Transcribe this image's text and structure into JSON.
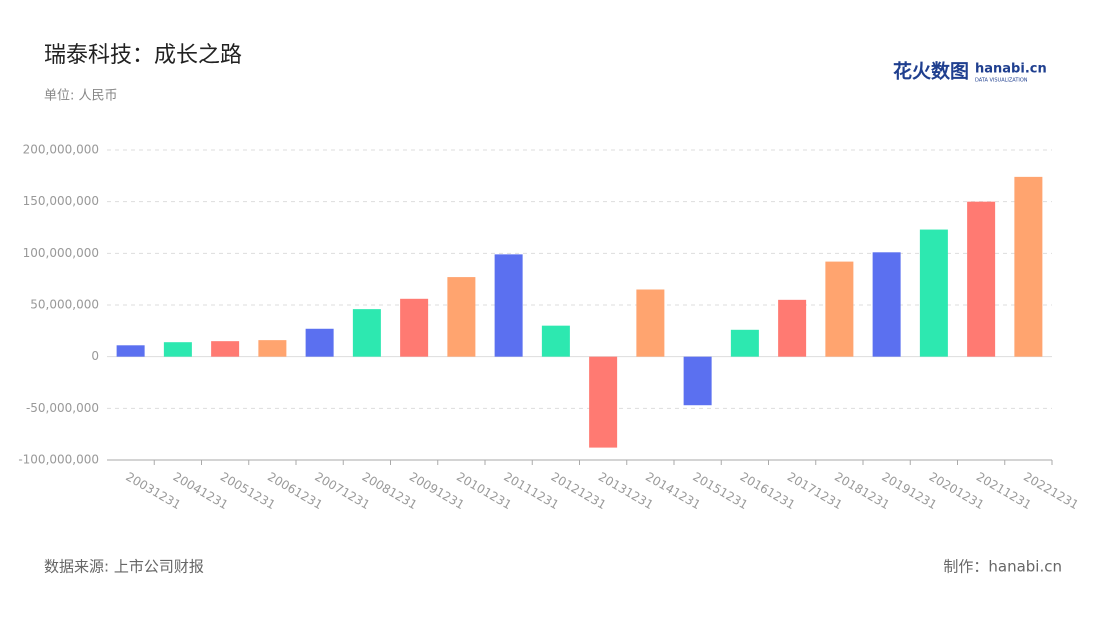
{
  "chart_data": {
    "type": "bar",
    "title": "瑞泰科技：成长之路",
    "subtitle": "单位: 人民币",
    "source": "数据来源: 上市公司财报",
    "credit": "制作：hanabi.cn",
    "logo": {
      "text": "花火数图",
      "brand": "hanabi.cn",
      "tagline": "DATA VISUALIZATION"
    },
    "categories": [
      "20031231",
      "20041231",
      "20051231",
      "20061231",
      "20071231",
      "20081231",
      "20091231",
      "20101231",
      "20111231",
      "20121231",
      "20131231",
      "20141231",
      "20151231",
      "20161231",
      "20171231",
      "20181231",
      "20191231",
      "20201231",
      "20211231",
      "20221231"
    ],
    "values": [
      11000000,
      14000000,
      15000000,
      16000000,
      27000000,
      46000000,
      56000000,
      77000000,
      99000000,
      30000000,
      -88000000,
      65000000,
      -47000000,
      26000000,
      55000000,
      92000000,
      101000000,
      123000000,
      150000000,
      174000000
    ],
    "colors": [
      "#5b70f0",
      "#2de8b0",
      "#ff7a72",
      "#ffa46f"
    ],
    "ylim": [
      -100000000,
      200000000
    ],
    "yticks": [
      {
        "value": -100000000,
        "label": "-100,000,000"
      },
      {
        "value": -50000000,
        "label": "-50,000,000"
      },
      0,
      {
        "value": 50000000,
        "label": "50,000,000"
      },
      {
        "value": 100000000,
        "label": "100,000,000"
      },
      {
        "value": 150000000,
        "label": "150,000,000"
      },
      {
        "value": 200000000,
        "label": "200,000,000"
      }
    ],
    "grid": true
  }
}
